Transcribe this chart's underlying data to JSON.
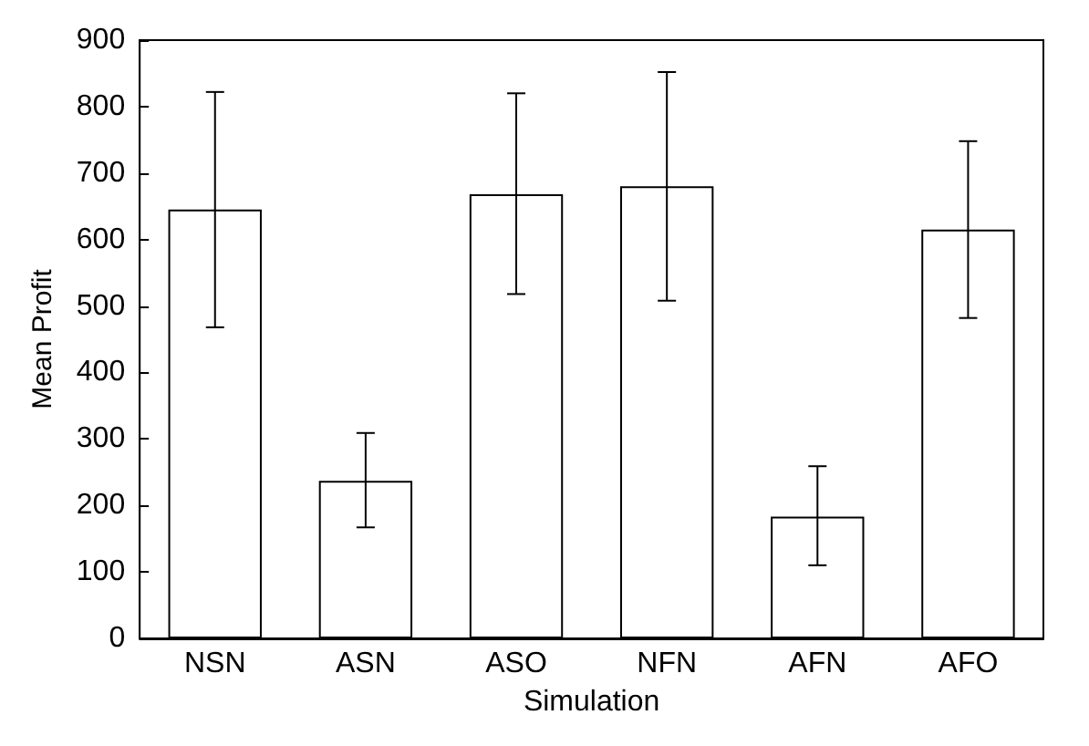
{
  "chart_data": {
    "type": "bar",
    "xlabel": "Simulation",
    "ylabel": "Mean Profit",
    "categories": [
      "NSN",
      "ASN",
      "ASO",
      "NFN",
      "AFN",
      "AFO"
    ],
    "values": [
      645,
      237,
      668,
      680,
      183,
      615
    ],
    "errors": [
      [
        468,
        822
      ],
      [
        167,
        309
      ],
      [
        518,
        820
      ],
      [
        508,
        852
      ],
      [
        110,
        259
      ],
      [
        482,
        748
      ]
    ],
    "color": "#ffffff",
    "ylim": [
      0,
      900
    ],
    "yticks": [
      0,
      100,
      200,
      300,
      400,
      500,
      600,
      700,
      800,
      900
    ],
    "grid": false
  }
}
